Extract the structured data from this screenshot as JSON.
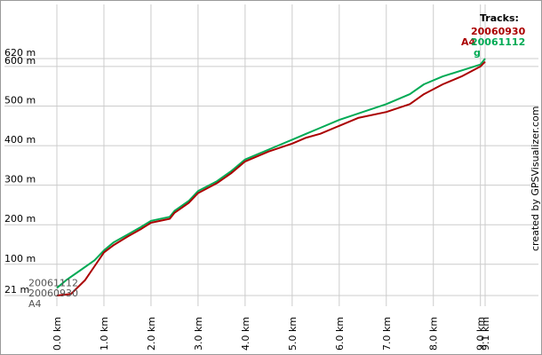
{
  "chart_data": {
    "type": "line",
    "xlabel": "",
    "ylabel": "",
    "xlim": [
      0,
      9.1
    ],
    "ylim": [
      21,
      620
    ],
    "x_unit": "km",
    "y_unit": "m",
    "x_ticks": [
      0.0,
      1.0,
      2.0,
      3.0,
      4.0,
      5.0,
      6.0,
      7.0,
      8.0,
      9.0,
      9.1
    ],
    "x_tick_labels": [
      "0.0 km",
      "1.0 km",
      "2.0 km",
      "3.0 km",
      "4.0 km",
      "5.0 km",
      "6.0 km",
      "7.0 km",
      "8.0 km",
      "9.0 km",
      "9.1 km"
    ],
    "y_ticks": [
      21,
      100,
      200,
      300,
      400,
      500,
      600,
      620
    ],
    "y_tick_labels": [
      "21 m",
      "100 m",
      "200 m",
      "300 m",
      "400 m",
      "500 m",
      "600 m",
      "620 m"
    ],
    "grid": true,
    "legend_title": "Tracks:",
    "legend_placement": "top-right",
    "credit": "created by GPSVisualizer.com",
    "series": [
      {
        "name": "20060930",
        "color": "#aa0000",
        "start_label": "20060930",
        "end_label": "A4",
        "x": [
          0.0,
          0.3,
          0.6,
          0.8,
          1.0,
          1.2,
          1.5,
          1.8,
          2.0,
          2.4,
          2.5,
          2.8,
          3.0,
          3.4,
          3.7,
          4.0,
          4.5,
          5.0,
          5.3,
          5.6,
          6.0,
          6.4,
          7.0,
          7.5,
          7.8,
          8.2,
          8.6,
          9.0,
          9.1
        ],
        "values": [
          21,
          25,
          60,
          95,
          130,
          148,
          170,
          190,
          205,
          215,
          230,
          255,
          280,
          305,
          330,
          360,
          385,
          405,
          420,
          430,
          450,
          470,
          485,
          505,
          530,
          555,
          575,
          600,
          612
        ]
      },
      {
        "name": "20061112",
        "color": "#00aa55",
        "start_label": "20061112",
        "end_label": "g",
        "x": [
          0.0,
          0.2,
          0.5,
          0.8,
          1.0,
          1.2,
          1.5,
          1.8,
          2.0,
          2.4,
          2.5,
          2.8,
          3.0,
          3.4,
          3.7,
          4.0,
          4.5,
          5.0,
          5.3,
          5.6,
          6.0,
          6.5,
          7.0,
          7.5,
          7.8,
          8.2,
          8.6,
          9.0,
          9.1
        ],
        "values": [
          40,
          60,
          85,
          110,
          135,
          155,
          175,
          195,
          210,
          220,
          235,
          260,
          285,
          310,
          335,
          365,
          390,
          415,
          430,
          445,
          465,
          485,
          505,
          530,
          555,
          575,
          590,
          605,
          620
        ]
      }
    ]
  }
}
